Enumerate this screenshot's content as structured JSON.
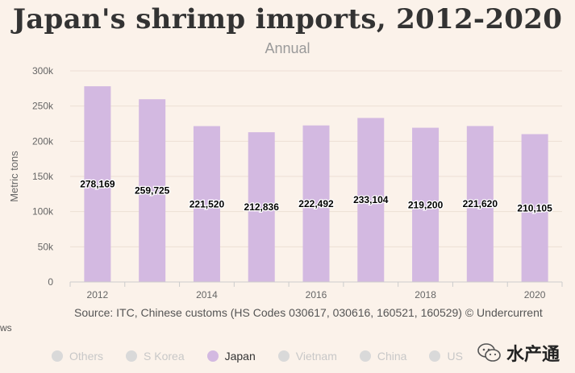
{
  "chart_data": {
    "type": "bar",
    "title": "Japan's shrimp imports, 2012-2020",
    "subtitle": "Annual",
    "ylabel": "Metric tons",
    "xlabel": "",
    "categories": [
      "2012",
      "2013",
      "2014",
      "2015",
      "2016",
      "2017",
      "2018",
      "2019",
      "2020"
    ],
    "x_tick_labels": [
      "2012",
      "2014",
      "2016",
      "2018",
      "2020"
    ],
    "y_tick_labels": [
      "0",
      "50k",
      "100k",
      "150k",
      "200k",
      "250k",
      "300k"
    ],
    "ylim": [
      0,
      300000
    ],
    "y_ticks": [
      0,
      50000,
      100000,
      150000,
      200000,
      250000,
      300000
    ],
    "series": [
      {
        "name": "Japan",
        "values": [
          278169,
          259725,
          221520,
          212836,
          222492,
          233104,
          219200,
          221620,
          210105
        ],
        "value_labels": [
          "278,169",
          "259,725",
          "221,520",
          "212,836",
          "222,492",
          "233,104",
          "219,200",
          "221,620",
          "210,105"
        ]
      }
    ],
    "bar_color": "#d3b9e1",
    "grid": true,
    "legend_position": "bottom"
  },
  "source": "Source: ITC, Chinese customs (HS Codes 030617, 030616, 160521, 160529)  © Undercurrent",
  "edge_text": "ws",
  "legend": [
    {
      "label": "Others",
      "color": "#d9d9d9",
      "text_color": "#c8c8c8"
    },
    {
      "label": "S Korea",
      "color": "#d9d9d9",
      "text_color": "#c8c8c8"
    },
    {
      "label": "Japan",
      "color": "#d3b9e1",
      "text_color": "#333333"
    },
    {
      "label": "Vietnam",
      "color": "#d9d9d9",
      "text_color": "#c8c8c8"
    },
    {
      "label": "China",
      "color": "#d9d9d9",
      "text_color": "#c8c8c8"
    },
    {
      "label": "US",
      "color": "#d9d9d9",
      "text_color": "#c8c8c8"
    }
  ],
  "watermark": {
    "text": "水产通",
    "icon": "wechat-icon"
  }
}
